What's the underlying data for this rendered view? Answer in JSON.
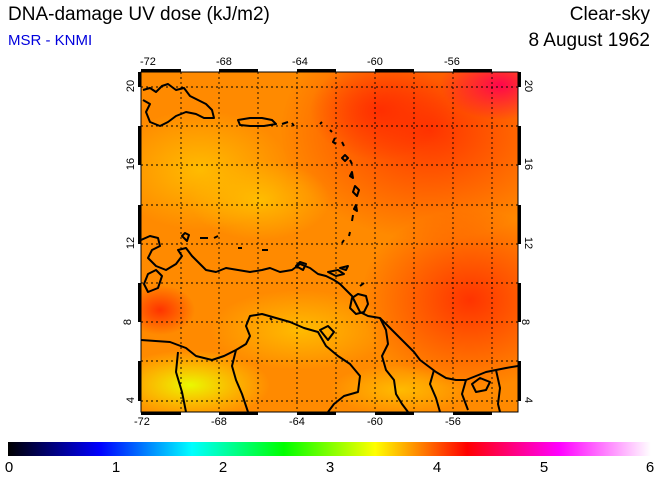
{
  "header": {
    "title": "DNA-damage UV dose (kJ/m2)",
    "subtitle": "MSR - KNMI",
    "sky_type": "Clear-sky",
    "date": "8 August 1962"
  },
  "map": {
    "lon_ticks": [
      "-72",
      "-68",
      "-64",
      "-60",
      "-56"
    ],
    "lat_ticks": [
      "4",
      "8",
      "12",
      "16",
      "20"
    ],
    "lon_range": [
      -72,
      -52.5
    ],
    "lat_range": [
      3.5,
      20.5
    ]
  },
  "colorbar": {
    "labels": [
      "0",
      "1",
      "2",
      "3",
      "4",
      "5",
      "6"
    ],
    "min": 0,
    "max": 6,
    "colors": [
      "#000000",
      "#0000ff",
      "#00ffff",
      "#00ff00",
      "#ffff00",
      "#ff0000",
      "#ff00ff",
      "#ffffff"
    ]
  }
}
